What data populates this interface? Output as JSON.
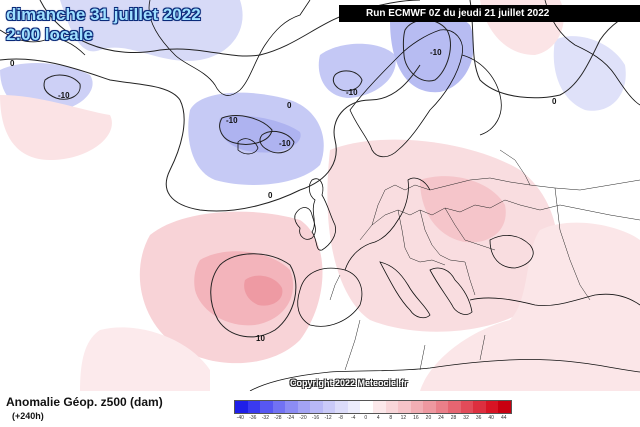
{
  "header": {
    "date": "dimanche 31 juillet 2022",
    "local_time": "2:00 locale",
    "run": "Run ECMWF 0Z du jeudi 21 juillet 2022"
  },
  "footer": {
    "title": "Anomalie Géop. z500 (dam)",
    "lead_time": "(+240h)",
    "copyright": "Copyright 2022 Meteociel.fr"
  },
  "map": {
    "contour_labels": [
      {
        "id": "contour-label-greenland-0",
        "text": "0"
      },
      {
        "id": "contour-label-atlantic-west-neg10",
        "text": "-10"
      },
      {
        "id": "contour-label-atlantic-low-neg10a",
        "text": "-10"
      },
      {
        "id": "contour-label-atlantic-low-neg10b",
        "text": "-10"
      },
      {
        "id": "contour-label-norwegian-sea-neg10",
        "text": "-10"
      },
      {
        "id": "contour-label-scandinavia-neg10",
        "text": "-10"
      },
      {
        "id": "contour-label-mid-atlantic-0",
        "text": "0"
      },
      {
        "id": "contour-label-north-atlantic-0",
        "text": "0"
      },
      {
        "id": "contour-label-russia-0",
        "text": "0"
      },
      {
        "id": "contour-label-iberia-10",
        "text": "10"
      }
    ],
    "colors": {
      "ocean": "#ffffff",
      "coast": "#111111",
      "contour": "#222222",
      "negative_light": "#c9cdf5",
      "negative_mid": "#a9aef0",
      "positive_light": "#f9dcdf",
      "positive_mid": "#f3b7bd",
      "positive_strong": "#ee8f97"
    }
  },
  "legend": {
    "labels": [
      "-40",
      "-36",
      "-32",
      "-28",
      "-24",
      "-20",
      "-16",
      "-12",
      "-8",
      "-4",
      "0",
      "4",
      "8",
      "12",
      "16",
      "20",
      "24",
      "28",
      "32",
      "36",
      "40",
      "44"
    ],
    "colors": [
      "#1f1fe8",
      "#3a3af0",
      "#5757f2",
      "#7272f3",
      "#8c8cf4",
      "#a3a3f4",
      "#b8b8f6",
      "#cacaf8",
      "#dcdcfa",
      "#ececfc",
      "#ffffff",
      "#fbe8ea",
      "#f8d6d9",
      "#f5c3c8",
      "#f1aeb4",
      "#ee98a0",
      "#ea7f89",
      "#e66571",
      "#e24b59",
      "#dd2f3f",
      "#d81424",
      "#c80010"
    ]
  }
}
